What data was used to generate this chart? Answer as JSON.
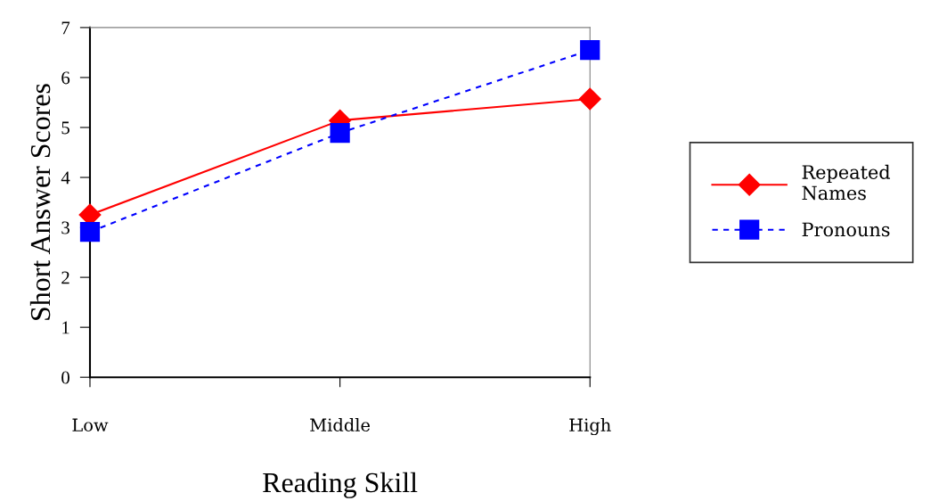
{
  "chart_data": {
    "type": "line",
    "xlabel": "Reading Skill",
    "ylabel": "Short Answer Scores",
    "categories": [
      "Low",
      "Middle",
      "High"
    ],
    "series": [
      {
        "name": "Repeated Names",
        "color": "#ff0000",
        "values": [
          3.25,
          5.14,
          5.57
        ],
        "marker": "diamond",
        "line_style": "solid"
      },
      {
        "name": "Pronouns",
        "color": "#0000ff",
        "values": [
          2.91,
          4.89,
          6.55
        ],
        "marker": "square",
        "line_style": "dashed"
      }
    ],
    "ylim": [
      0,
      7
    ],
    "yticks": [
      0,
      1,
      2,
      3,
      4,
      5,
      6,
      7
    ],
    "grid": false,
    "legend": "right"
  }
}
